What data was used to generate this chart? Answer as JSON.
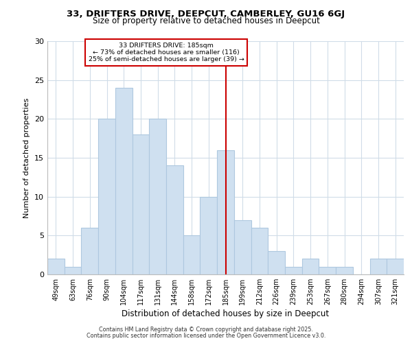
{
  "title1": "33, DRIFTERS DRIVE, DEEPCUT, CAMBERLEY, GU16 6GJ",
  "title2": "Size of property relative to detached houses in Deepcut",
  "xlabel": "Distribution of detached houses by size in Deepcut",
  "ylabel": "Number of detached properties",
  "categories": [
    "49sqm",
    "63sqm",
    "76sqm",
    "90sqm",
    "104sqm",
    "117sqm",
    "131sqm",
    "144sqm",
    "158sqm",
    "172sqm",
    "185sqm",
    "199sqm",
    "212sqm",
    "226sqm",
    "239sqm",
    "253sqm",
    "267sqm",
    "280sqm",
    "294sqm",
    "307sqm",
    "321sqm"
  ],
  "values": [
    2,
    1,
    6,
    20,
    24,
    18,
    20,
    14,
    5,
    10,
    16,
    7,
    6,
    3,
    1,
    2,
    1,
    1,
    0,
    2,
    2
  ],
  "bar_color": "#cfe0f0",
  "bar_edgecolor": "#aec8df",
  "vline_x_index": 10,
  "vline_color": "#cc0000",
  "annotation_line1": "33 DRIFTERS DRIVE: 185sqm",
  "annotation_line2": "← 73% of detached houses are smaller (116)",
  "annotation_line3": "25% of semi-detached houses are larger (39) →",
  "annotation_box_color": "#cc0000",
  "ylim": [
    0,
    30
  ],
  "yticks": [
    0,
    5,
    10,
    15,
    20,
    25,
    30
  ],
  "background_color": "#ffffff",
  "grid_color": "#d0dce8",
  "footer_text1": "Contains HM Land Registry data © Crown copyright and database right 2025.",
  "footer_text2": "Contains public sector information licensed under the Open Government Licence v3.0."
}
